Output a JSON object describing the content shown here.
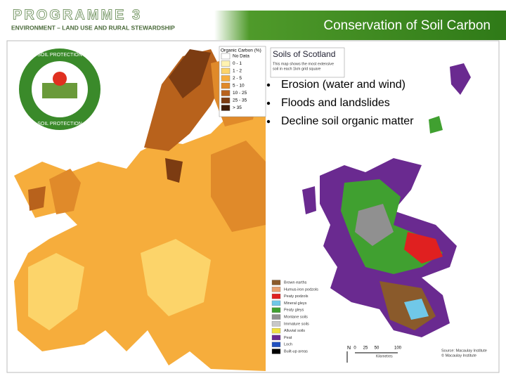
{
  "header": {
    "programme": "PROGRAMME 3",
    "subtitle": "ENVIRONMENT – LAND USE AND RURAL STEWARDSHIP"
  },
  "title": "Conservation of Soil Carbon",
  "bullets": [
    "Erosion (water and wind)",
    "Floods and landslides",
    "Decline soil organic matter"
  ],
  "logo": {
    "top": "SOIL PROTECTION",
    "bottom": "SOIL PROTECTION"
  },
  "europe_map": {
    "legend_title": "Organic Carbon (%)",
    "legend": [
      {
        "label": "No Data",
        "color": "#ffffff"
      },
      {
        "label": "0 - 1",
        "color": "#fff3b0"
      },
      {
        "label": "1 - 2",
        "color": "#fcd46a"
      },
      {
        "label": "2 - 5",
        "color": "#f6ad3c"
      },
      {
        "label": "5 - 10",
        "color": "#e08a2a"
      },
      {
        "label": "10 - 25",
        "color": "#b8621c"
      },
      {
        "label": "25 - 35",
        "color": "#7c3c12"
      },
      {
        "label": "> 35",
        "color": "#3f1c08"
      }
    ]
  },
  "scotland_map": {
    "title": "Soils of Scotland",
    "note": [
      "This map shows the most extensive",
      "soil in each 1km grid square"
    ],
    "legend": [
      {
        "label": "Brown earths",
        "color": "#8a5a2b"
      },
      {
        "label": "Humus-iron podzols",
        "color": "#e8a070"
      },
      {
        "label": "Peaty podzols",
        "color": "#e02020"
      },
      {
        "label": "Mineral gleys",
        "color": "#70c8e8"
      },
      {
        "label": "Peaty gleys",
        "color": "#40a030"
      },
      {
        "label": "Montane soils",
        "color": "#909090"
      },
      {
        "label": "Immature soils",
        "color": "#c8c8c8"
      },
      {
        "label": "Alluvial soils",
        "color": "#f0e040"
      },
      {
        "label": "Peat",
        "color": "#6a2a90"
      },
      {
        "label": "Loch",
        "color": "#2050c0"
      },
      {
        "label": "Built-up areas",
        "color": "#000000"
      }
    ],
    "north": "N",
    "scale": [
      "0",
      "25",
      "50",
      "100"
    ],
    "scale_unit": "Kilometres",
    "source": [
      "Source: Macaulay Institute",
      "© Macaulay Institute"
    ]
  }
}
